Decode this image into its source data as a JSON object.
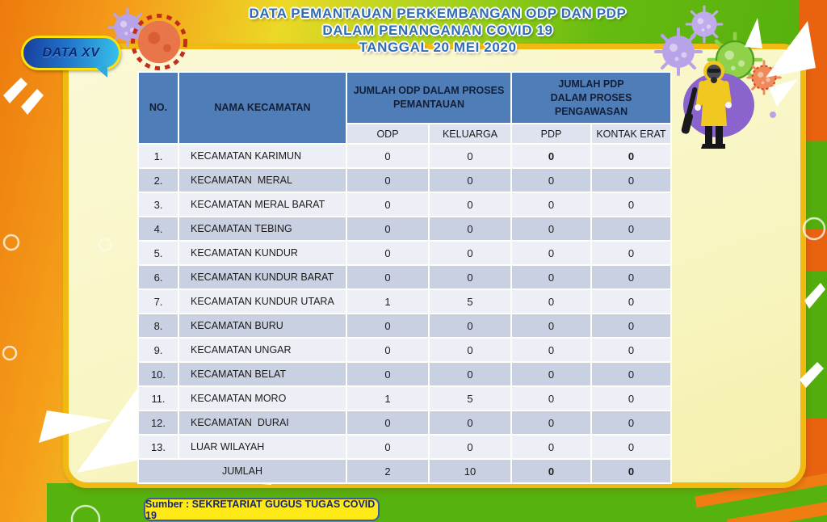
{
  "badge": {
    "label": "DATA XV"
  },
  "title": {
    "line1": "DATA PEMANTAUAN PERKEMBANGAN ODP DAN PDP",
    "line2": "DALAM PENANGANAN COVID 19",
    "line3": "TANGGAL 20 MEI 2020"
  },
  "table": {
    "headers": {
      "no": "NO.",
      "name": "NAMA KECAMATAN",
      "odp_group": "JUMLAH ODP DALAM PROSES\nPEMANTAUAN",
      "pdp_group": "JUMLAH PDP\nDALAM PROSES\nPENGAWASAN",
      "sub": [
        "ODP",
        "KELUARGA",
        "PDP",
        "KONTAK ERAT"
      ]
    },
    "rows": [
      {
        "no": "1.",
        "name": "KECAMATAN KARIMUN",
        "odp": "0",
        "keluarga": "0",
        "pdp": "0",
        "kontak": "0",
        "bold": true
      },
      {
        "no": "2.",
        "name": "KECAMATAN  MERAL",
        "odp": "0",
        "keluarga": "0",
        "pdp": "0",
        "kontak": "0",
        "bold": false
      },
      {
        "no": "3.",
        "name": "KECAMATAN MERAL BARAT",
        "odp": "0",
        "keluarga": "0",
        "pdp": "0",
        "kontak": "0",
        "bold": false
      },
      {
        "no": "4.",
        "name": "KECAMATAN TEBING",
        "odp": "0",
        "keluarga": "0",
        "pdp": "0",
        "kontak": "0",
        "bold": false
      },
      {
        "no": "5.",
        "name": "KECAMATAN KUNDUR",
        "odp": "0",
        "keluarga": "0",
        "pdp": "0",
        "kontak": "0",
        "bold": false
      },
      {
        "no": "6.",
        "name": "KECAMATAN KUNDUR BARAT",
        "odp": "0",
        "keluarga": "0",
        "pdp": "0",
        "kontak": "0",
        "bold": false
      },
      {
        "no": "7.",
        "name": "KECAMATAN KUNDUR UTARA",
        "odp": "1",
        "keluarga": "5",
        "pdp": "0",
        "kontak": "0",
        "bold": false
      },
      {
        "no": "8.",
        "name": "KECAMATAN BURU",
        "odp": "0",
        "keluarga": "0",
        "pdp": "0",
        "kontak": "0",
        "bold": false
      },
      {
        "no": "9.",
        "name": "KECAMATAN UNGAR",
        "odp": "0",
        "keluarga": "0",
        "pdp": "0",
        "kontak": "0",
        "bold": false
      },
      {
        "no": "10.",
        "name": "KECAMATAN BELAT",
        "odp": "0",
        "keluarga": "0",
        "pdp": "0",
        "kontak": "0",
        "bold": false
      },
      {
        "no": "11.",
        "name": "KECAMATAN MORO",
        "odp": "1",
        "keluarga": "5",
        "pdp": "0",
        "kontak": "0",
        "bold": false
      },
      {
        "no": "12.",
        "name": "KECAMATAN  DURAI",
        "odp": "0",
        "keluarga": "0",
        "pdp": "0",
        "kontak": "0",
        "bold": false
      },
      {
        "no": "13.",
        "name": "LUAR WILAYAH",
        "odp": "0",
        "keluarga": "0",
        "pdp": "0",
        "kontak": "0",
        "bold": false
      }
    ],
    "total": {
      "label": "JUMLAH",
      "odp": "2",
      "keluarga": "10",
      "pdp": "0",
      "kontak": "0"
    }
  },
  "footer": {
    "source": "Sumber : SEKRETARIAT GUGUS TUGAS COVID 19"
  },
  "colors": {
    "header_blue": "#4e7db8",
    "subheader_bg": "#dfe2ef",
    "row_light": "#edeff7",
    "row_dark": "#c9d0e2",
    "panel_cream": "#f8f5c2",
    "frame_gold": "#f1ba12",
    "title_blue": "#2e6db6",
    "badge_yellow": "#ffe916",
    "badge_navy": "#14267c",
    "bg_orange": "#ed7a0d",
    "bg_green": "#4ea90b"
  }
}
